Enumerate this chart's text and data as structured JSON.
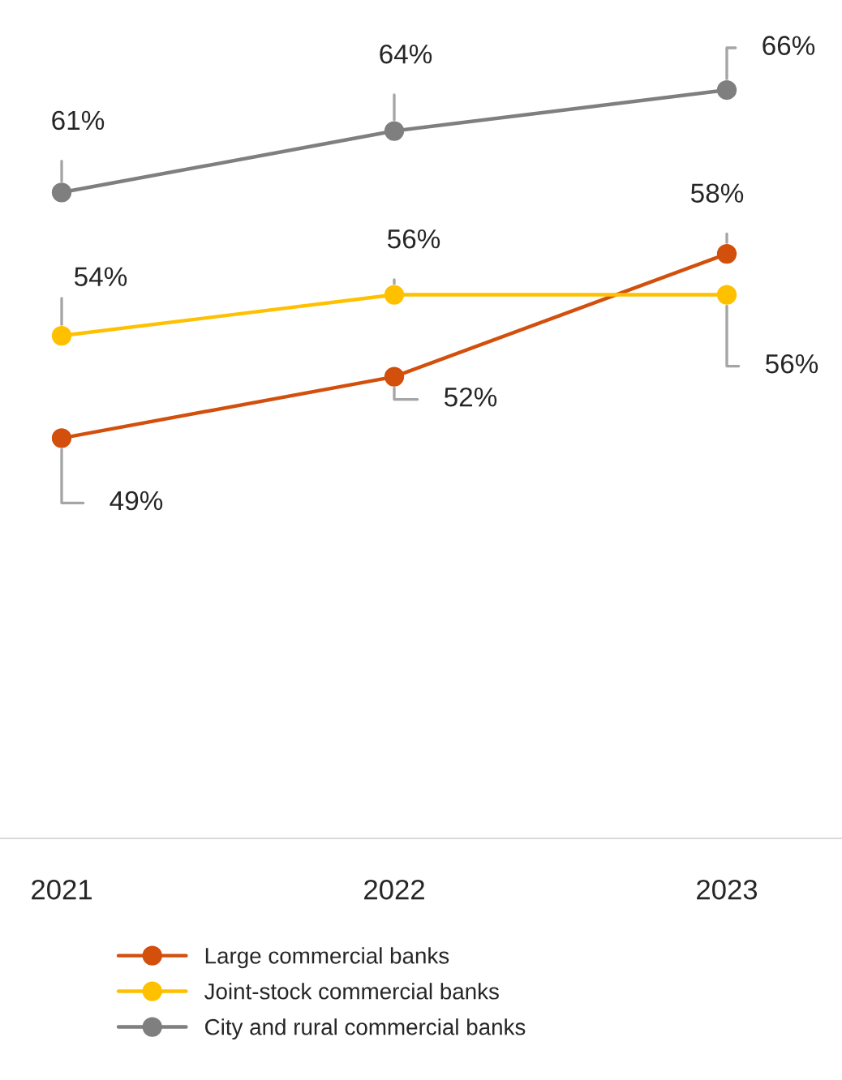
{
  "chart_data": {
    "type": "line",
    "categories": [
      "2021",
      "2022",
      "2023"
    ],
    "series": [
      {
        "name": "Large commercial banks",
        "color": "#d24f0c",
        "values": [
          49,
          52,
          58
        ],
        "value_labels": [
          "49%",
          "52%",
          "58%"
        ]
      },
      {
        "name": "Joint-stock commercial banks",
        "color": "#ffc000",
        "values": [
          54,
          56,
          56
        ],
        "value_labels": [
          "54%",
          "56%",
          "56%"
        ]
      },
      {
        "name": "City and rural commercial banks",
        "color": "#7f7f7f",
        "values": [
          61,
          64,
          66
        ],
        "value_labels": [
          "61%",
          "64%",
          "66%"
        ]
      }
    ],
    "tick_labels": "x",
    "marker": "circle",
    "line_style": "solid",
    "grid": false,
    "legend": "bottom"
  }
}
